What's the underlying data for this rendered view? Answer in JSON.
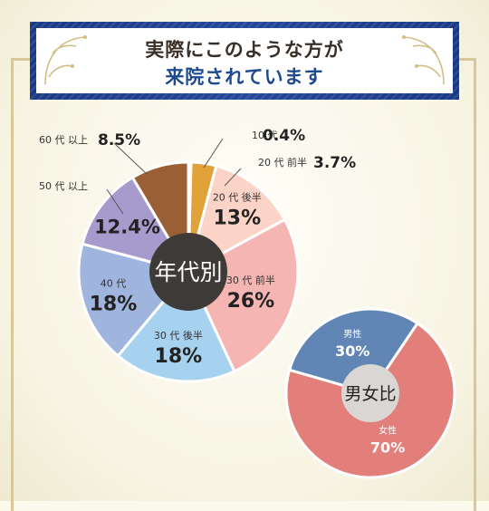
{
  "header": {
    "title_line1": "実際にこのような方が",
    "title_line2": "来院されています"
  },
  "chart_data": [
    {
      "type": "pie",
      "center_label": "年代別",
      "slices": [
        {
          "label": "10 代",
          "value": 0.4,
          "value_text": "0.4%",
          "color": "#e3b838"
        },
        {
          "label": "20 代 前半",
          "value": 3.7,
          "value_text": "3.7%",
          "color": "#e1a23a"
        },
        {
          "label": "20 代 後半",
          "value": 13,
          "value_text": "13%",
          "color": "#fcd4c7"
        },
        {
          "label": "30 代 前半",
          "value": 26,
          "value_text": "26%",
          "color": "#f5b5b3"
        },
        {
          "label": "30 代 後半",
          "value": 18,
          "value_text": "18%",
          "color": "#a6d1ef"
        },
        {
          "label": "40 代",
          "value": 18,
          "value_text": "18%",
          "color": "#9fb5dd"
        },
        {
          "label": "50 代 以上",
          "value": 12.4,
          "value_text": "12.4%",
          "color": "#a79bcd"
        },
        {
          "label": "60 代 以上",
          "value": 8.5,
          "value_text": "8.5%",
          "color": "#9b5f36"
        }
      ]
    },
    {
      "type": "pie",
      "center_label": "男女比",
      "slices": [
        {
          "label": "男性",
          "value": 30,
          "value_text": "30%",
          "color": "#6186b5"
        },
        {
          "label": "女性",
          "value": 70,
          "value_text": "70%",
          "color": "#e27f7b"
        }
      ]
    }
  ]
}
